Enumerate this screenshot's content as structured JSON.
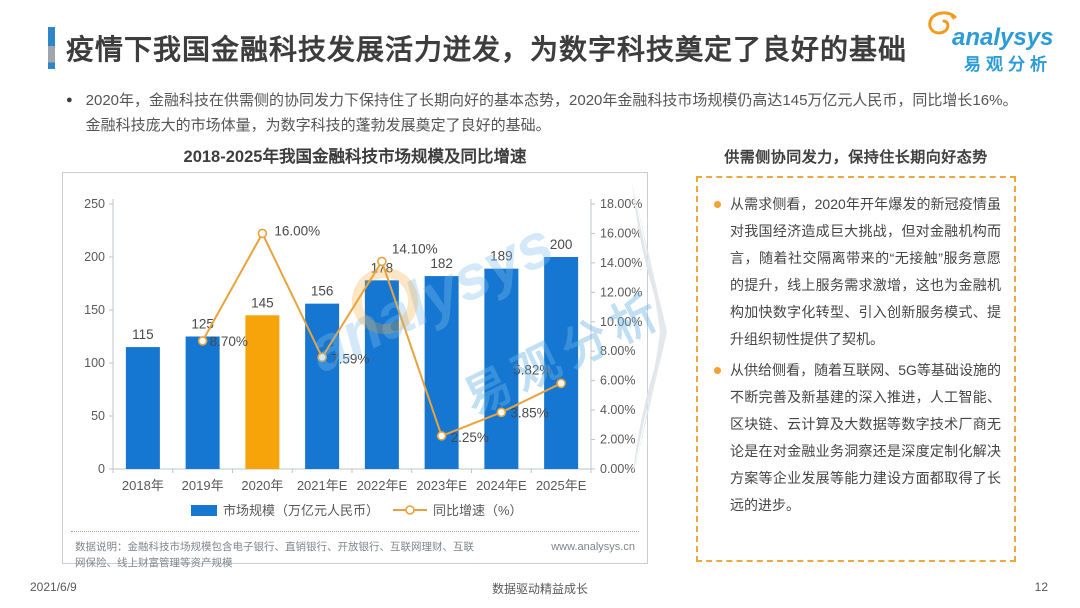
{
  "header": {
    "title": "疫情下我国金融科技发展活力迸发，为数字科技奠定了良好的基础",
    "logo": {
      "brand": "analysys",
      "brand_cn": "易观分析",
      "brand_color": "#2B9CD8",
      "swirl_color": "#F49A1D"
    }
  },
  "intro": {
    "marker": "●",
    "text": "2020年，金融科技在供需侧的协同发力下保持住了长期向好的基本态势，2020年金融科技市场规模仍高达145万亿元人民币，同比增长16%。金融科技庞大的市场体量，为数字科技的蓬勃发展奠定了良好的基础。"
  },
  "chart_data": {
    "type": "bar+line",
    "title": "2018-2025年我国金融科技市场规模及同比增速",
    "categories": [
      "2018年",
      "2019年",
      "2020年",
      "2021年E",
      "2022年E",
      "2023年E",
      "2024年E",
      "2025年E"
    ],
    "series": [
      {
        "name": "市场规模（万亿元人民币）",
        "chart": "bar",
        "values": [
          115,
          125,
          145,
          156,
          178,
          182,
          189,
          200
        ],
        "color": "#1577D2",
        "highlight_index": 2,
        "highlight_color": "#F7A30A"
      },
      {
        "name": "同比增速（%）",
        "chart": "line",
        "values": [
          null,
          8.7,
          16.0,
          7.59,
          14.1,
          2.25,
          3.85,
          5.82
        ],
        "point_labels": [
          "",
          "8.70%",
          "16.00%",
          "7.59%",
          "14.10%",
          "2.25%",
          "3.85%",
          "5.82%"
        ],
        "color": "#E8A33C"
      }
    ],
    "left_axis": {
      "min": 0,
      "max": 250,
      "step": 50,
      "ticks": [
        "250",
        "200",
        "150",
        "100",
        "50",
        "0"
      ]
    },
    "right_axis": {
      "min": 0,
      "max": 18,
      "step": 2,
      "ticks": [
        "18.00%",
        "16.00%",
        "14.00%",
        "12.00%",
        "10.00%",
        "8.00%",
        "6.00%",
        "4.00%",
        "2.00%",
        "0.00%"
      ]
    },
    "legend_position": "bottom",
    "grid": false
  },
  "chart_meta": {
    "footnote": "数据说明：金融科技市场规模包含电子银行、直销银行、开放银行、互联网理财、互联网保险、线上财富管理等资产规模",
    "source_url": "www.analysys.cn"
  },
  "panel": {
    "heading": "供需侧协同发力，保持住长期向好态势",
    "bullets": [
      "从需求侧看，2020年开年爆发的新冠疫情虽对我国经济造成巨大挑战，但对金融机构而言，随着社交隔离带来的“无接触”服务意愿的提升，线上服务需求激增，这也为金融机构加快数字化转型、引入创新服务模式、提升组织韧性提供了契机。",
      "从供给侧看，随着互联网、5G等基础设施的不断完善及新基建的深入推进，人工智能、区块链、云计算及大数据等数字技术厂商无论是在对金融业务洞察还是深度定制化解决方案等企业发展等能力建设方面都取得了长远的进步。"
    ]
  },
  "watermark": {
    "latin": "analysys",
    "cn": "易观分析"
  },
  "footer": {
    "date": "2021/6/9",
    "center": "数据驱动精益成长",
    "page": "12"
  }
}
